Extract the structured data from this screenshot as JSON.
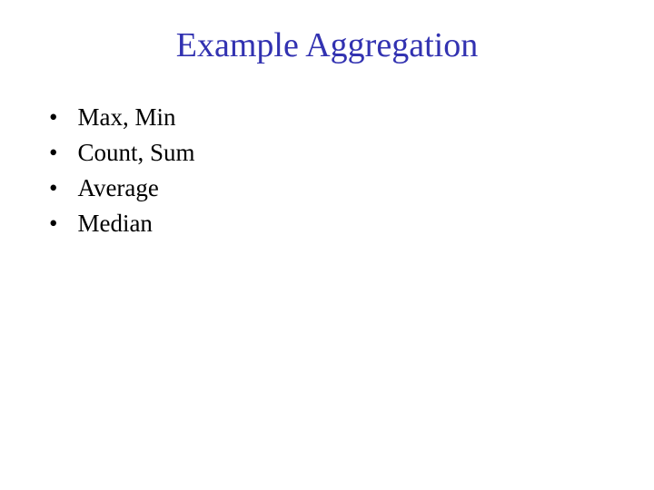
{
  "slide": {
    "title": "Example Aggregation",
    "title_color": "#3232b1",
    "title_fontsize": 38,
    "background_color": "#ffffff",
    "body_color": "#000000",
    "body_fontsize": 27,
    "font_family": "Times New Roman",
    "bullets": [
      {
        "text": "Max, Min"
      },
      {
        "text": "Count, Sum"
      },
      {
        "text": "Average"
      },
      {
        "text": "Median"
      }
    ]
  }
}
